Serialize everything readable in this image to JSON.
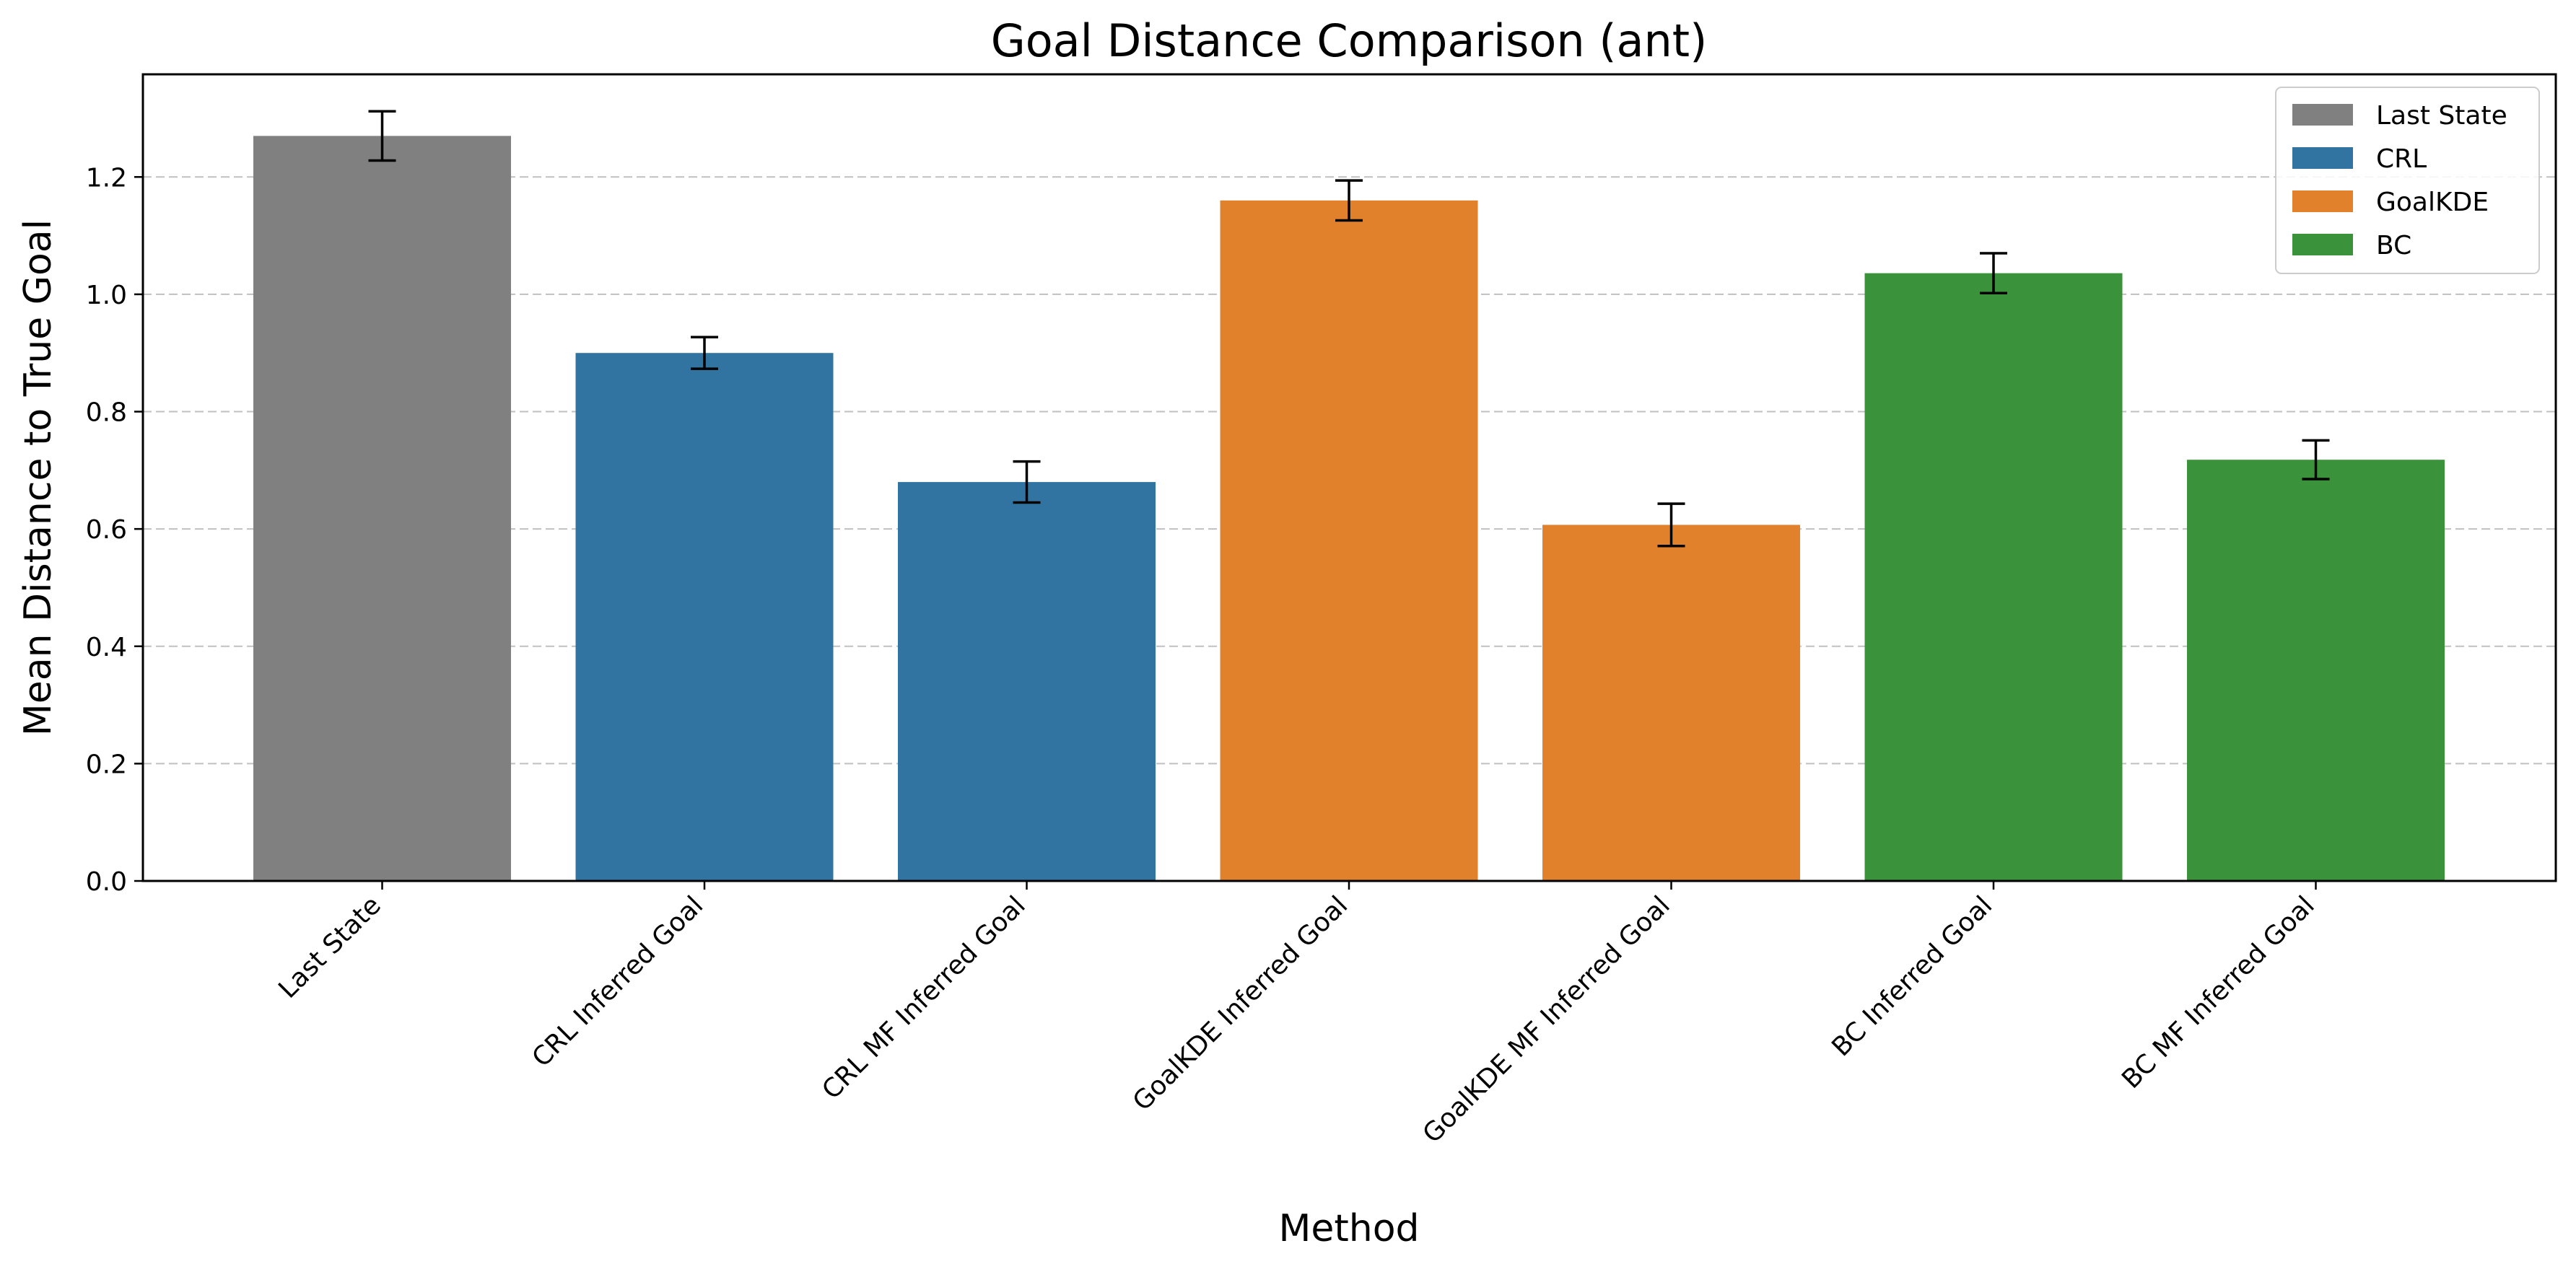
{
  "chart_data": {
    "type": "bar",
    "title": "Goal Distance Comparison (ant)",
    "xlabel": "Method",
    "ylabel": "Mean Distance to True Goal",
    "ylim": [
      0,
      1.375
    ],
    "yticks": [
      "0.0",
      "0.2",
      "0.4",
      "0.6",
      "0.8",
      "1.0",
      "1.2"
    ],
    "grid": "horizontal dashed",
    "legend_position": "top-right",
    "categories": [
      "Last State",
      "CRL Inferred Goal",
      "CRL MF Inferred Goal",
      "GoalKDE Inferred Goal",
      "GoalKDE MF Inferred Goal",
      "BC Inferred Goal",
      "BC MF Inferred Goal"
    ],
    "values": [
      1.27,
      0.9,
      0.68,
      1.16,
      0.607,
      1.036,
      0.718
    ],
    "error": [
      0.042,
      0.027,
      0.035,
      0.034,
      0.036,
      0.034,
      0.033
    ],
    "bar_groups": [
      "Last State",
      "CRL",
      "CRL",
      "GoalKDE",
      "GoalKDE",
      "BC",
      "BC"
    ],
    "legend": [
      {
        "name": "Last State",
        "color": "#808080"
      },
      {
        "name": "CRL",
        "color": "#3274a1"
      },
      {
        "name": "GoalKDE",
        "color": "#e1812c"
      },
      {
        "name": "BC",
        "color": "#3a923a"
      }
    ]
  }
}
